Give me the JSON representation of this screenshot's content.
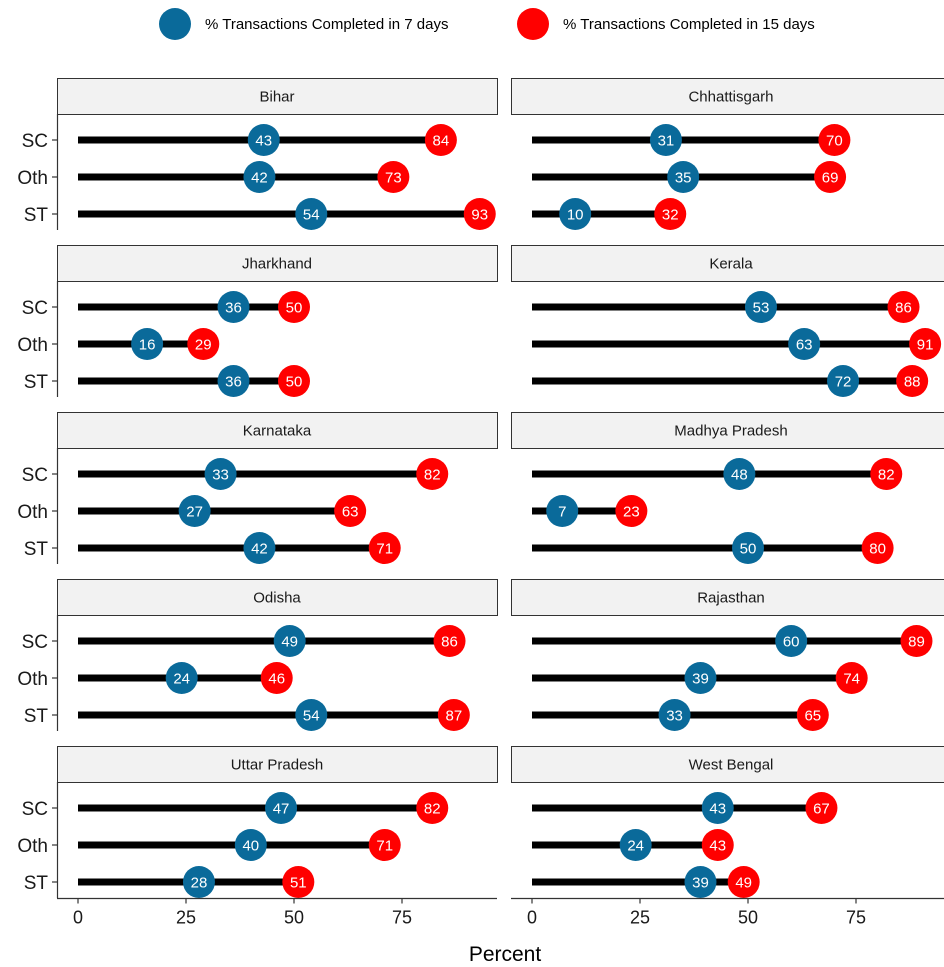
{
  "chart_data": {
    "type": "dumbbell",
    "xlabel": "Percent",
    "xlim": [
      0,
      93
    ],
    "xticks": [
      0,
      25,
      50,
      75
    ],
    "categories": [
      "SC",
      "Oth",
      "ST"
    ],
    "legend": {
      "position": "top",
      "items": [
        {
          "label": "% Transactions Completed in 7 days",
          "color": "#0a6a9a"
        },
        {
          "label": "% Transactions Completed in 15 days",
          "color": "#ff0000"
        }
      ]
    },
    "colors": {
      "seven": "#0a6a9a",
      "fifteen": "#ff0000",
      "bar": "#000000",
      "strip": "#f2f2f2"
    },
    "panels": [
      {
        "state": "Bihar",
        "seven_days": [
          43,
          42,
          54
        ],
        "fifteen_days": [
          84,
          73,
          93
        ]
      },
      {
        "state": "Chhattisgarh",
        "seven_days": [
          31,
          35,
          10
        ],
        "fifteen_days": [
          70,
          69,
          32
        ]
      },
      {
        "state": "Jharkhand",
        "seven_days": [
          36,
          16,
          36
        ],
        "fifteen_days": [
          50,
          29,
          50
        ]
      },
      {
        "state": "Kerala",
        "seven_days": [
          53,
          63,
          72
        ],
        "fifteen_days": [
          86,
          91,
          88
        ]
      },
      {
        "state": "Karnataka",
        "seven_days": [
          33,
          27,
          42
        ],
        "fifteen_days": [
          82,
          63,
          71
        ]
      },
      {
        "state": "Madhya Pradesh",
        "seven_days": [
          48,
          7,
          50
        ],
        "fifteen_days": [
          82,
          23,
          80
        ]
      },
      {
        "state": "Odisha",
        "seven_days": [
          49,
          24,
          54
        ],
        "fifteen_days": [
          86,
          46,
          87
        ]
      },
      {
        "state": "Rajasthan",
        "seven_days": [
          60,
          39,
          33
        ],
        "fifteen_days": [
          89,
          74,
          65
        ]
      },
      {
        "state": "Uttar Pradesh",
        "seven_days": [
          47,
          40,
          28
        ],
        "fifteen_days": [
          82,
          71,
          51
        ]
      },
      {
        "state": "West Bengal",
        "seven_days": [
          43,
          24,
          39
        ],
        "fifteen_days": [
          67,
          43,
          49
        ]
      }
    ]
  }
}
